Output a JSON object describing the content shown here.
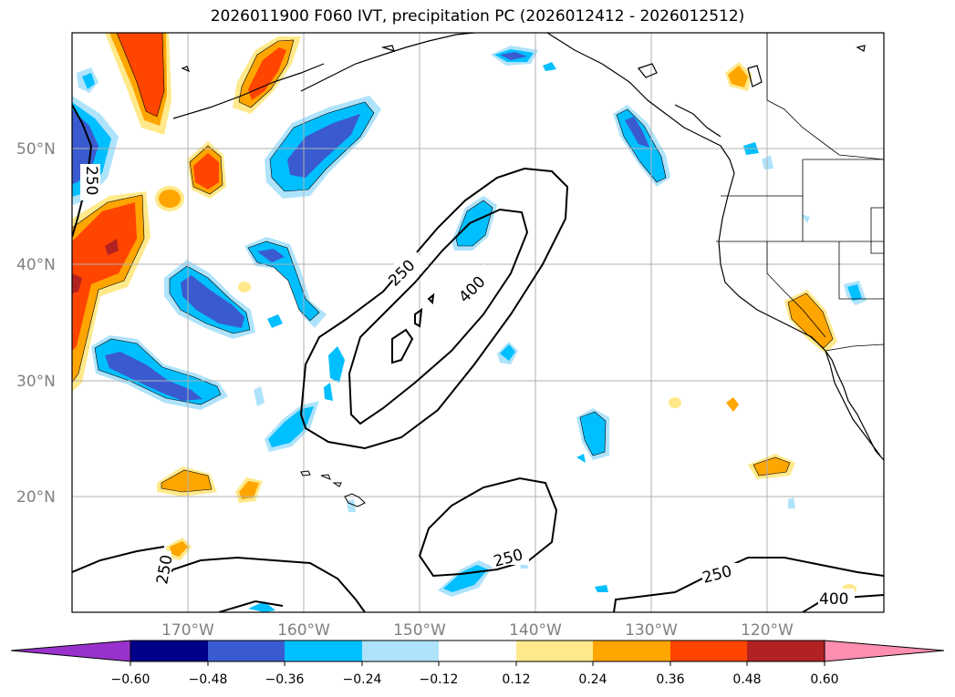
{
  "title": "2026011900 F060 IVT, precipitation PC (2026012412 - 2026012512)",
  "lat_labels": [
    "50°N",
    "40°N",
    "30°N",
    "20°N"
  ],
  "lon_labels": [
    "170°W",
    "160°W",
    "150°W",
    "140°W",
    "130°W",
    "120°W"
  ],
  "contour_labels": [
    "250",
    "250",
    "400",
    "250",
    "250",
    "250",
    "400"
  ],
  "colorbar": {
    "ticks": [
      "−0.60",
      "−0.48",
      "−0.36",
      "−0.24",
      "−0.12",
      "0.12",
      "0.24",
      "0.36",
      "0.48",
      "0.60"
    ],
    "colors": [
      "#9932cc",
      "#00008b",
      "#3a5bcf",
      "#00bfff",
      "#aee3fb",
      "#ffffff",
      "#ffe98a",
      "#ffa500",
      "#ff4500",
      "#b22222",
      "#ff8fb0"
    ]
  },
  "map_data": {
    "extent_lon": [
      -180,
      -110
    ],
    "extent_lat": [
      10,
      60
    ],
    "variable": "IVT, precipitation PC",
    "contour_levels": [
      250,
      400
    ]
  }
}
